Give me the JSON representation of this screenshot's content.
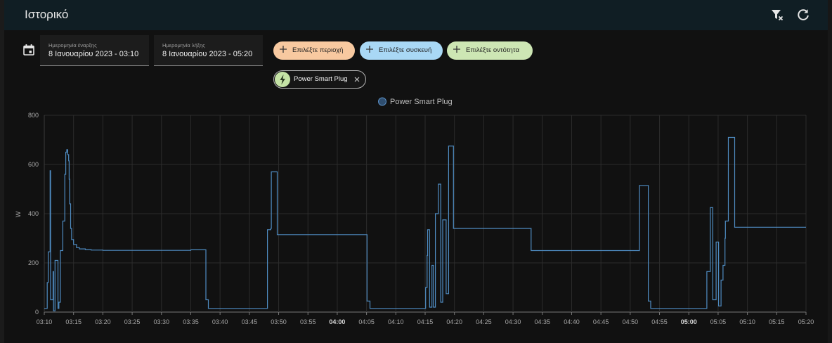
{
  "header": {
    "title": "Ιστορικό",
    "filter_icon": "filter-remove-icon",
    "refresh_icon": "refresh-icon"
  },
  "picker": {
    "calendar_icon": "calendar-icon",
    "start": {
      "label": "Ημερομηνία έναρξης",
      "value": "8 Ιανουαρίου 2023 - 03:10"
    },
    "end": {
      "label": "Ημερομηνία λήξης",
      "value": "8 Ιανουαρίου 2023 - 05:20"
    }
  },
  "targets": {
    "add_area": "Επιλέξτε περιοχή",
    "add_device": "Επιλέξτε συσκευή",
    "add_entity": "Επιλέξτε οντότητα",
    "selected_entity": {
      "name": "Power Smart Plug",
      "icon": "flash-icon",
      "remove_icon": "close-icon"
    }
  },
  "colors": {
    "area_chip": "#f8c9a0",
    "device_chip": "#a9d8f5",
    "entity_chip": "#cde6b4",
    "series_line": "#4f8cc2"
  },
  "chart_data": {
    "type": "line",
    "legend": {
      "position": "top-center",
      "entries": [
        "Power Smart Plug"
      ]
    },
    "ylabel": "W",
    "ylim": [
      0,
      800
    ],
    "yticks": [
      "0",
      "200",
      "400",
      "600",
      "800"
    ],
    "xticks": [
      "03:10",
      "03:15",
      "03:20",
      "03:25",
      "03:30",
      "03:35",
      "03:40",
      "03:45",
      "03:50",
      "03:55",
      "04:00",
      "04:05",
      "04:10",
      "04:15",
      "04:20",
      "04:25",
      "04:30",
      "04:35",
      "04:40",
      "04:45",
      "04:50",
      "04:55",
      "05:00",
      "05:05",
      "05:10",
      "05:15",
      "05:20"
    ],
    "bold_ticks": [
      "04:00",
      "05:00"
    ],
    "grid": true,
    "series": [
      {
        "name": "Power Smart Plug",
        "step": true,
        "points": [
          [
            "03:10:00",
            15
          ],
          [
            "03:10:25",
            15
          ],
          [
            "03:10:30",
            120
          ],
          [
            "03:10:40",
            245
          ],
          [
            "03:11:00",
            575
          ],
          [
            "03:11:05",
            50
          ],
          [
            "03:11:25",
            50
          ],
          [
            "03:11:30",
            165
          ],
          [
            "03:11:35",
            5
          ],
          [
            "03:11:45",
            5
          ],
          [
            "03:11:50",
            210
          ],
          [
            "03:12:15",
            210
          ],
          [
            "03:12:20",
            15
          ],
          [
            "03:12:30",
            40
          ],
          [
            "03:12:40",
            40
          ],
          [
            "03:12:45",
            250
          ],
          [
            "03:13:05",
            250
          ],
          [
            "03:13:10",
            370
          ],
          [
            "03:13:25",
            370
          ],
          [
            "03:13:30",
            560
          ],
          [
            "03:13:40",
            650
          ],
          [
            "03:13:50",
            660
          ],
          [
            "03:14:00",
            640
          ],
          [
            "03:14:10",
            615
          ],
          [
            "03:14:15",
            540
          ],
          [
            "03:14:20",
            440
          ],
          [
            "03:14:30",
            340
          ],
          [
            "03:14:40",
            295
          ],
          [
            "03:15:00",
            275
          ],
          [
            "03:15:30",
            262
          ],
          [
            "03:16:00",
            257
          ],
          [
            "03:17:00",
            254
          ],
          [
            "03:18:00",
            252
          ],
          [
            "03:20:00",
            251
          ],
          [
            "03:33:00",
            251
          ],
          [
            "03:35:00",
            253
          ],
          [
            "03:37:30",
            253
          ],
          [
            "03:37:35",
            50
          ],
          [
            "03:37:55",
            50
          ],
          [
            "03:38:00",
            15
          ],
          [
            "03:48:00",
            15
          ],
          [
            "03:48:05",
            335
          ],
          [
            "03:48:40",
            340
          ],
          [
            "03:48:45",
            570
          ],
          [
            "03:49:40",
            570
          ],
          [
            "03:49:45",
            315
          ],
          [
            "04:05:00",
            315
          ],
          [
            "04:05:05",
            45
          ],
          [
            "04:05:30",
            45
          ],
          [
            "04:05:35",
            15
          ],
          [
            "04:15:00",
            15
          ],
          [
            "04:15:05",
            100
          ],
          [
            "04:15:20",
            230
          ],
          [
            "04:15:25",
            335
          ],
          [
            "04:15:45",
            20
          ],
          [
            "04:16:05",
            20
          ],
          [
            "04:16:10",
            190
          ],
          [
            "04:16:20",
            190
          ],
          [
            "04:16:25",
            20
          ],
          [
            "04:16:40",
            20
          ],
          [
            "04:16:45",
            400
          ],
          [
            "04:17:10",
            400
          ],
          [
            "04:17:15",
            520
          ],
          [
            "04:17:35",
            520
          ],
          [
            "04:17:40",
            40
          ],
          [
            "04:17:55",
            40
          ],
          [
            "04:18:00",
            375
          ],
          [
            "04:18:30",
            375
          ],
          [
            "04:18:35",
            75
          ],
          [
            "04:18:55",
            75
          ],
          [
            "04:19:00",
            675
          ],
          [
            "04:19:45",
            675
          ],
          [
            "04:19:50",
            340
          ],
          [
            "04:33:00",
            340
          ],
          [
            "04:33:05",
            250
          ],
          [
            "04:51:30",
            250
          ],
          [
            "04:51:35",
            515
          ],
          [
            "04:53:00",
            515
          ],
          [
            "04:53:05",
            45
          ],
          [
            "04:53:25",
            45
          ],
          [
            "04:53:30",
            15
          ],
          [
            "05:03:00",
            15
          ],
          [
            "05:03:05",
            165
          ],
          [
            "05:03:35",
            165
          ],
          [
            "05:03:40",
            425
          ],
          [
            "05:04:00",
            425
          ],
          [
            "05:04:05",
            50
          ],
          [
            "05:04:35",
            50
          ],
          [
            "05:04:40",
            285
          ],
          [
            "05:05:00",
            285
          ],
          [
            "05:05:05",
            25
          ],
          [
            "05:05:25",
            25
          ],
          [
            "05:05:30",
            130
          ],
          [
            "05:05:50",
            190
          ],
          [
            "05:06:10",
            300
          ],
          [
            "05:06:15",
            370
          ],
          [
            "05:06:40",
            370
          ],
          [
            "05:06:45",
            710
          ],
          [
            "05:07:45",
            710
          ],
          [
            "05:07:50",
            345
          ],
          [
            "05:20:00",
            345
          ]
        ]
      }
    ]
  }
}
